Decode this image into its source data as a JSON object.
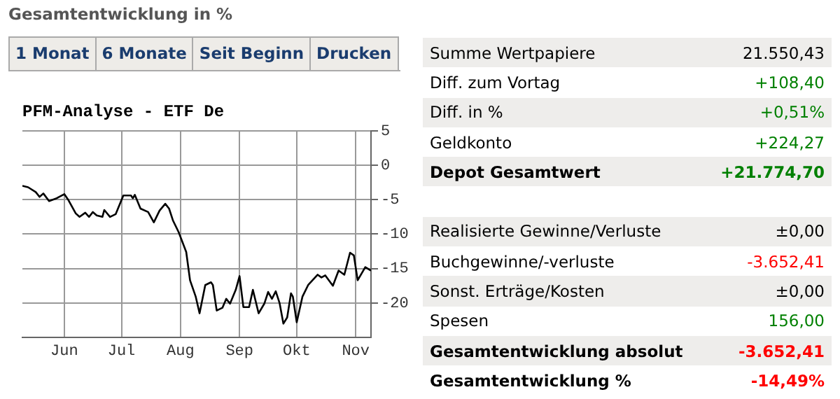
{
  "chart_data": [
    {
      "type": "line",
      "title": "Gesamtentwicklung in %",
      "subtitle": "PFM-Analyse - ETF De",
      "annotations": [
        "1 Monat",
        "6 Monate",
        "Seit Beginn",
        "Drucken"
      ],
      "x": [
        "--05-10",
        "--05-13",
        "--05-17",
        "--05-19",
        "--05-21",
        "--05-24",
        "--05-28",
        "--06-01",
        "--06-03",
        "--06-07",
        "--06-09",
        "--06-12",
        "--06-14",
        "--06-16",
        "--06-18",
        "--06-21",
        "--06-22",
        "--06-25",
        "--06-28",
        "--07-02",
        "--07-06",
        "--07-07",
        "--07-08",
        "--07-11",
        "--07-15",
        "--07-18",
        "--07-21",
        "--07-24",
        "--07-26",
        "--07-28",
        "--07-31",
        "--08-04",
        "--08-06",
        "--08-09",
        "--08-11",
        "--08-14",
        "--08-17",
        "--08-18",
        "--08-20",
        "--08-23",
        "--08-25",
        "--08-27",
        "--08-30",
        "--09-01",
        "--09-03",
        "--09-06",
        "--09-08",
        "--09-11",
        "--09-14",
        "--09-16",
        "--09-18",
        "--09-20",
        "--09-22",
        "--09-24",
        "--09-26",
        "--09-28",
        "--09-29",
        "--10-01",
        "--10-04",
        "--10-07",
        "--10-12",
        "--10-14",
        "--10-16",
        "--10-20",
        "--10-23",
        "--10-26",
        "--10-29",
        "--10-31",
        "--11-02",
        "--11-06",
        "--11-09"
      ],
      "series": [
        {
          "color": "#000000",
          "values": [
            -3.0,
            -3.2,
            -3.9,
            -4.6,
            -4.1,
            -5.2,
            -4.8,
            -4.2,
            -5.0,
            -7.0,
            -7.5,
            -6.9,
            -7.5,
            -6.8,
            -7.3,
            -7.5,
            -6.5,
            -7.5,
            -7.1,
            -4.4,
            -4.4,
            -4.8,
            -4.3,
            -6.3,
            -6.8,
            -8.3,
            -6.6,
            -5.6,
            -6.3,
            -8.0,
            -9.7,
            -12.6,
            -16.7,
            -19.1,
            -21.5,
            -17.4,
            -17.0,
            -17.4,
            -21.1,
            -20.7,
            -19.4,
            -20.1,
            -18.1,
            -16.1,
            -20.6,
            -20.6,
            -18.1,
            -21.5,
            -20.1,
            -18.4,
            -19.4,
            -18.3,
            -20.0,
            -23.0,
            -22.1,
            -18.6,
            -19.1,
            -22.8,
            -19.1,
            -17.4,
            -15.9,
            -16.3,
            -16.0,
            -17.5,
            -15.3,
            -15.9,
            -12.7,
            -13.1,
            -16.7,
            -14.8,
            -15.3
          ]
        }
      ],
      "xlim": [
        "--05-10",
        "--11-09"
      ],
      "xticks": [
        {
          "value": "--06-01",
          "label": "Jun"
        },
        {
          "value": "--07-01",
          "label": "Jul"
        },
        {
          "value": "--08-01",
          "label": "Aug"
        },
        {
          "value": "--09-01",
          "label": "Sep"
        },
        {
          "value": "--10-01",
          "label": "Okt"
        },
        {
          "value": "--11-01",
          "label": "Nov"
        }
      ],
      "ylim": [
        -25,
        5
      ],
      "yticks": [
        5,
        0,
        -5,
        -10,
        -15,
        -20
      ],
      "grid": true,
      "legend": false,
      "marker": "none",
      "line_style": "solid"
    },
    {
      "type": "other",
      "categories": [
        "Summe Wertpapiere",
        "Diff. zum Vortag",
        "Diff. in %",
        "Geldkonto",
        "Depot Gesamtwert",
        null,
        "Realisierte Gewinne/Verluste",
        "Buchgewinne/-verluste",
        "Sonst. Erträge/Kosten",
        "Spesen",
        "Gesamtentwicklung absolut",
        "Gesamtentwicklung %"
      ],
      "value_labels": [
        "21.550,43",
        "+108,40",
        "+0,51%",
        "+224,27",
        "+21.774,70",
        null,
        "±0,00",
        "-3.652,41",
        "±0,00",
        "156,00",
        "-3.652,41",
        "-14,49%"
      ],
      "colors": [
        "#000000",
        "#008000",
        "#008000",
        "#008000",
        "#008000",
        null,
        "#000000",
        "#ff0000",
        "#000000",
        "#008000",
        "#ff0000",
        "#ff0000"
      ]
    }
  ]
}
